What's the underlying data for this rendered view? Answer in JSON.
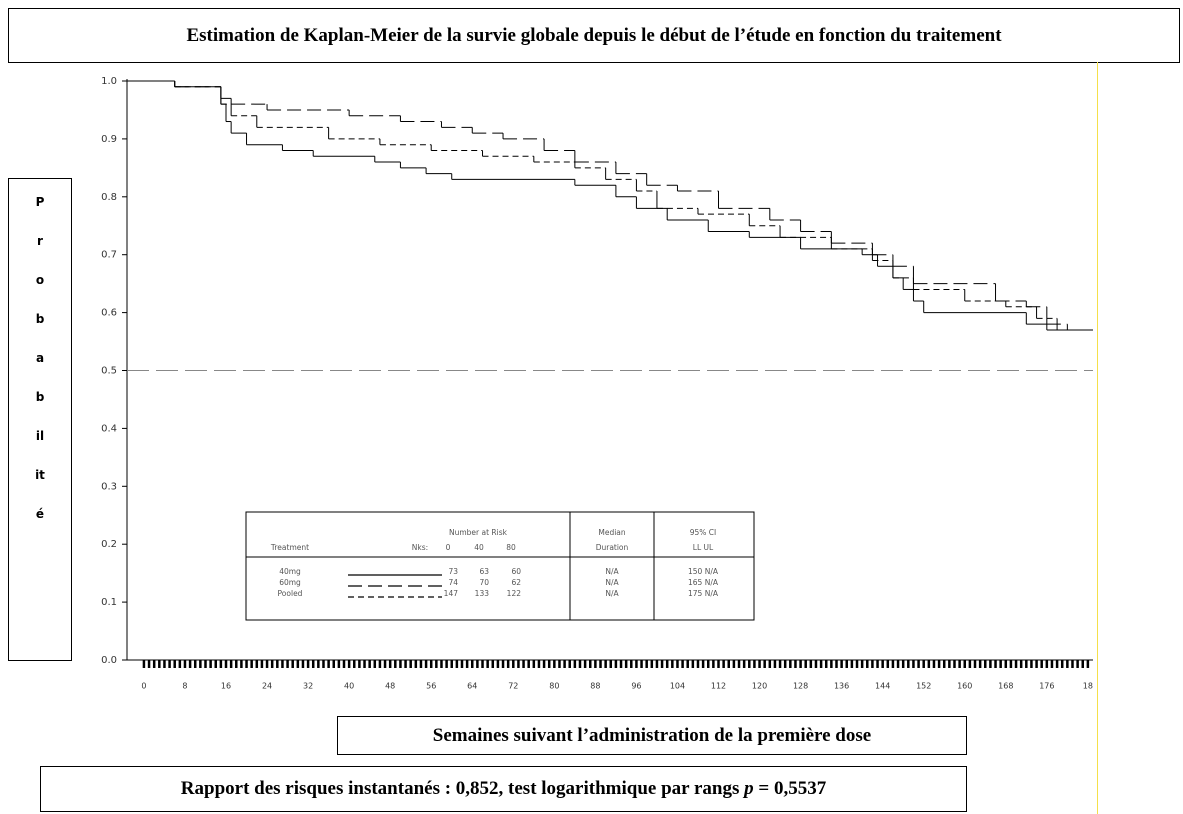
{
  "chart_data": {
    "type": "kaplan-meier",
    "title": "Estimation de Kaplan-Meier de la survie globale depuis le début de l’étude en fonction du traitement",
    "y_label": "Probabilité",
    "x_label": "Semaines suivant l’administration de la première dose",
    "footnote": {
      "before": "Rapport des risques instantanés : 0,852, test logarithmique par rangs ",
      "p": "p",
      "after": " = 0,5537"
    },
    "xlim": [
      -3.3,
      185
    ],
    "ylim": [
      0,
      1
    ],
    "xticks": [
      0,
      8,
      16,
      24,
      32,
      40,
      48,
      56,
      64,
      72,
      80,
      88,
      96,
      104,
      112,
      120,
      128,
      136,
      144,
      152,
      160,
      168,
      176,
      {
        "value": 184,
        "label": "18"
      }
    ],
    "yticks": [
      {
        "value": 0,
        "label": "0.0"
      },
      0.1,
      0.2,
      0.3,
      0.4,
      0.5,
      0.6,
      0.7,
      0.8,
      0.9,
      {
        "value": 1,
        "label": "1.0"
      }
    ],
    "reference_line": 0.5,
    "series": [
      {
        "name": "40mg",
        "color": "#000000",
        "linestyle": "solid",
        "x": [
          -3.3,
          6,
          15,
          16,
          17,
          20,
          27,
          33,
          45,
          50,
          55,
          60,
          84,
          92,
          96,
          102,
          110,
          118,
          128,
          140,
          143,
          146,
          148,
          150,
          152,
          172,
          176
        ],
        "values": [
          1.0,
          0.99,
          0.96,
          0.93,
          0.91,
          0.89,
          0.88,
          0.87,
          0.86,
          0.85,
          0.84,
          0.83,
          0.82,
          0.8,
          0.78,
          0.76,
          0.74,
          0.73,
          0.71,
          0.7,
          0.68,
          0.66,
          0.64,
          0.62,
          0.6,
          0.58,
          0.57
        ]
      },
      {
        "name": "60mg",
        "color": "#000000",
        "linestyle": "longdash",
        "x": [
          -3.3,
          6,
          15,
          17,
          24,
          40,
          50,
          58,
          64,
          70,
          78,
          84,
          92,
          98,
          104,
          112,
          122,
          128,
          134,
          142,
          146,
          150,
          166,
          172,
          176,
          180
        ],
        "values": [
          1.0,
          0.99,
          0.97,
          0.96,
          0.95,
          0.94,
          0.93,
          0.92,
          0.91,
          0.9,
          0.88,
          0.86,
          0.84,
          0.82,
          0.81,
          0.78,
          0.76,
          0.74,
          0.72,
          0.7,
          0.68,
          0.65,
          0.62,
          0.61,
          0.58,
          0.57
        ]
      },
      {
        "name": "Pooled",
        "color": "#000000",
        "linestyle": "dash",
        "x": [
          -3.3,
          6,
          15,
          17,
          22,
          36,
          46,
          56,
          66,
          76,
          84,
          90,
          96,
          100,
          108,
          118,
          124,
          134,
          142,
          146,
          150,
          160,
          168,
          174,
          178
        ],
        "values": [
          1.0,
          0.99,
          0.96,
          0.94,
          0.92,
          0.9,
          0.89,
          0.88,
          0.87,
          0.86,
          0.85,
          0.83,
          0.81,
          0.78,
          0.77,
          0.75,
          0.73,
          0.71,
          0.69,
          0.66,
          0.64,
          0.62,
          0.61,
          0.59,
          0.57
        ]
      }
    ],
    "risk_table": {
      "group_header": "Number at Risk",
      "treatment_header": "Treatment",
      "wks_header": "Nks:",
      "times": [
        "0",
        "40",
        "80"
      ],
      "median_header": [
        "Median",
        "Duration"
      ],
      "ci_header": [
        "95% CI",
        "LL  UL"
      ],
      "rows": [
        {
          "counts": [
            73,
            63,
            60
          ],
          "median": "N/A",
          "ci": "150 N/A"
        },
        {
          "counts": [
            74,
            70,
            62
          ],
          "median": "N/A",
          "ci": "165 N/A"
        },
        {
          "counts": [
            147,
            133,
            122
          ],
          "median": "N/A",
          "ci": "175 N/A"
        }
      ]
    }
  }
}
